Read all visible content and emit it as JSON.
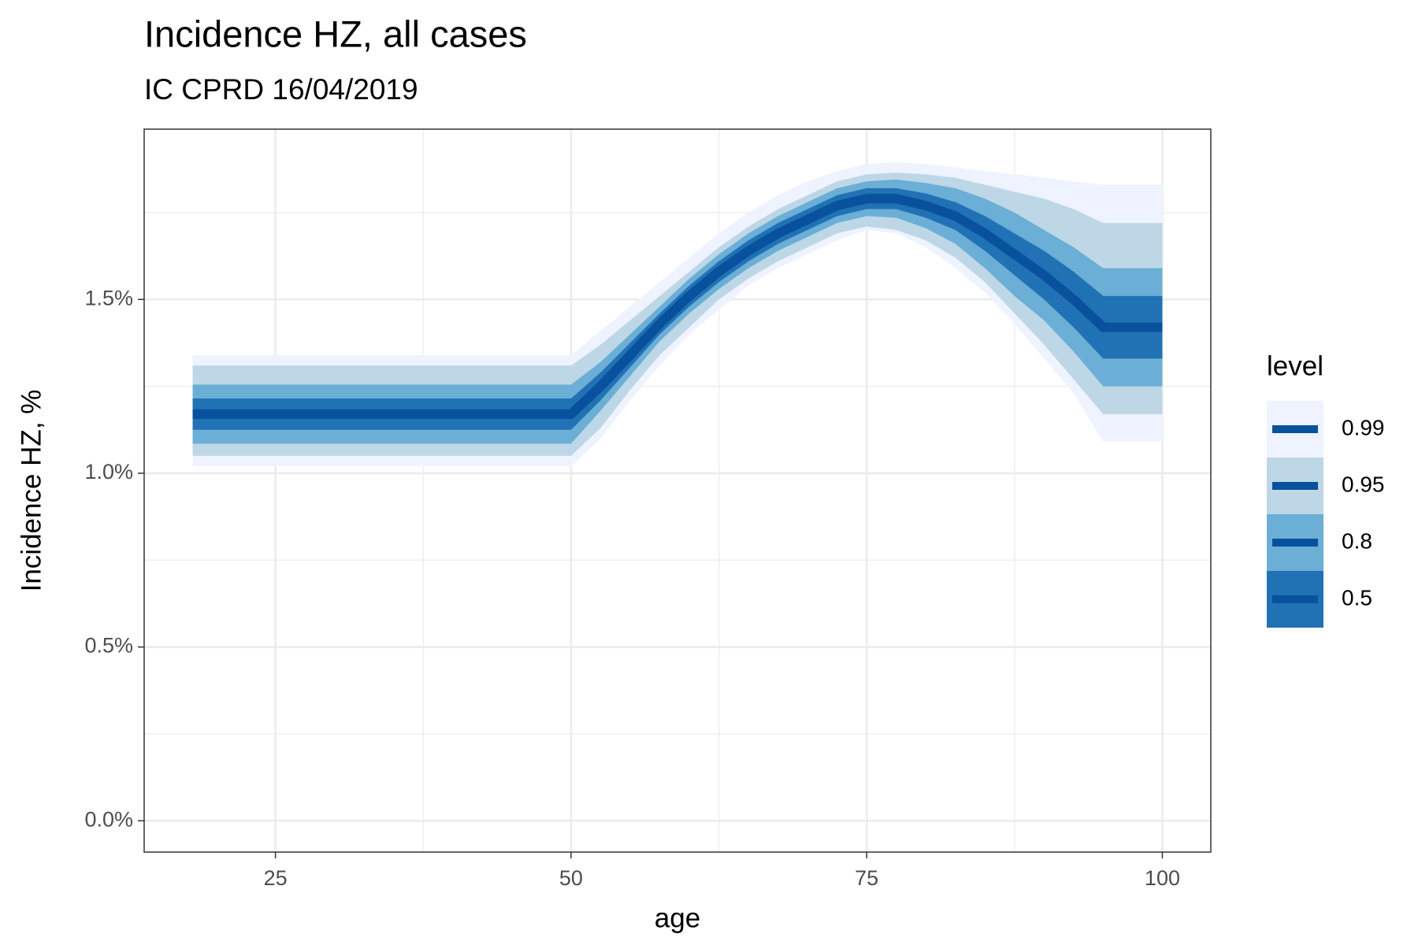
{
  "chart_data": {
    "type": "fan",
    "title": "Incidence HZ, all cases",
    "subtitle": "IC CPRD 16/04/2019",
    "x_label": "age",
    "y_label": "Incidence HZ, %",
    "legend_title": "level",
    "x": [
      18,
      50,
      52.5,
      55,
      57.5,
      60,
      62.5,
      65,
      67.5,
      70,
      72.5,
      75,
      77.5,
      80,
      82.5,
      85,
      87.5,
      90,
      92.5,
      95,
      100
    ],
    "median": [
      1.17,
      1.17,
      1.25,
      1.34,
      1.43,
      1.51,
      1.58,
      1.64,
      1.69,
      1.73,
      1.77,
      1.79,
      1.79,
      1.77,
      1.74,
      1.69,
      1.63,
      1.57,
      1.5,
      1.42,
      1.42
    ],
    "median_color": "#08519c",
    "series": [
      {
        "name": "0.99",
        "color": "#eff3ff",
        "upper": [
          1.34,
          1.34,
          1.41,
          1.48,
          1.55,
          1.62,
          1.69,
          1.75,
          1.8,
          1.84,
          1.87,
          1.89,
          1.895,
          1.89,
          1.88,
          1.87,
          1.86,
          1.85,
          1.84,
          1.83,
          1.83
        ],
        "lower": [
          1.02,
          1.02,
          1.1,
          1.21,
          1.31,
          1.4,
          1.47,
          1.54,
          1.59,
          1.63,
          1.67,
          1.7,
          1.69,
          1.65,
          1.59,
          1.52,
          1.43,
          1.33,
          1.23,
          1.09,
          1.09
        ]
      },
      {
        "name": "0.95",
        "color": "#bdd7e7",
        "upper": [
          1.31,
          1.31,
          1.37,
          1.44,
          1.51,
          1.58,
          1.65,
          1.71,
          1.76,
          1.8,
          1.84,
          1.86,
          1.865,
          1.86,
          1.85,
          1.83,
          1.81,
          1.79,
          1.76,
          1.72,
          1.72
        ],
        "lower": [
          1.05,
          1.05,
          1.13,
          1.24,
          1.34,
          1.42,
          1.5,
          1.56,
          1.61,
          1.65,
          1.69,
          1.71,
          1.7,
          1.67,
          1.62,
          1.55,
          1.46,
          1.37,
          1.27,
          1.17,
          1.17
        ]
      },
      {
        "name": "0.8",
        "color": "#6baed6",
        "upper": [
          1.255,
          1.255,
          1.32,
          1.4,
          1.48,
          1.56,
          1.63,
          1.69,
          1.74,
          1.78,
          1.82,
          1.84,
          1.845,
          1.835,
          1.82,
          1.79,
          1.75,
          1.7,
          1.65,
          1.59,
          1.59
        ],
        "lower": [
          1.085,
          1.085,
          1.18,
          1.28,
          1.38,
          1.46,
          1.53,
          1.59,
          1.64,
          1.68,
          1.72,
          1.74,
          1.735,
          1.705,
          1.66,
          1.59,
          1.51,
          1.44,
          1.35,
          1.25,
          1.25
        ]
      },
      {
        "name": "0.5",
        "color": "#2171b5",
        "upper": [
          1.215,
          1.215,
          1.29,
          1.375,
          1.46,
          1.54,
          1.61,
          1.67,
          1.72,
          1.76,
          1.8,
          1.82,
          1.82,
          1.805,
          1.78,
          1.74,
          1.69,
          1.64,
          1.58,
          1.51,
          1.51
        ],
        "lower": [
          1.125,
          1.125,
          1.21,
          1.305,
          1.4,
          1.48,
          1.55,
          1.61,
          1.66,
          1.7,
          1.74,
          1.76,
          1.76,
          1.735,
          1.7,
          1.64,
          1.57,
          1.5,
          1.42,
          1.33,
          1.33
        ]
      }
    ],
    "xlim": [
      13.9,
      104.1
    ],
    "ylim": [
      -0.09,
      1.99
    ],
    "xticks": [
      25,
      50,
      75,
      100
    ],
    "yticks": [
      {
        "value": 0,
        "label": "0.0%"
      },
      {
        "value": 0.5,
        "label": "0.5%"
      },
      {
        "value": 1,
        "label": "1.0%"
      },
      {
        "value": 1.5,
        "label": "1.5%"
      }
    ],
    "xminor": [
      37.5,
      62.5,
      87.5
    ],
    "yminor": [
      0.25,
      0.75,
      1.25,
      1.75
    ],
    "grid": true
  }
}
